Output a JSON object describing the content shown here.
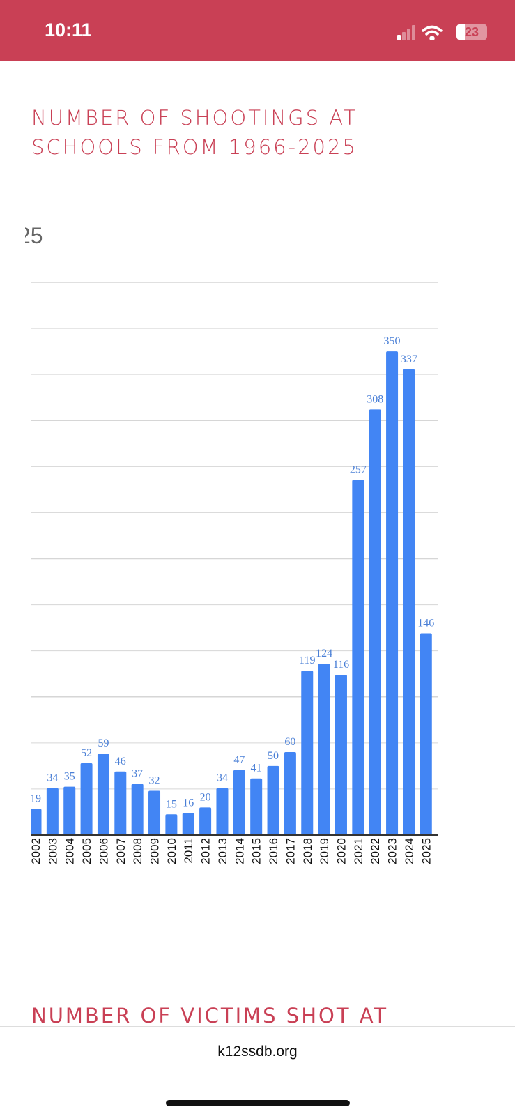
{
  "status_bar": {
    "time": "10:11",
    "battery": "23",
    "icons": [
      "signal-icon",
      "wifi-icon",
      "battery-icon"
    ]
  },
  "section_title": "NUMBER OF SHOOTINGS AT SCHOOLS FROM 1966-2025",
  "next_section_title": "NUMBER OF VICTIMS SHOT AT",
  "chart_cut_label": "25",
  "footer": {
    "url": "k12ssdb.org"
  },
  "chart_data": {
    "type": "bar",
    "title": "",
    "categories": [
      "2002",
      "2003",
      "2004",
      "2005",
      "2006",
      "2007",
      "2008",
      "2009",
      "2010",
      "2011",
      "2012",
      "2013",
      "2014",
      "2015",
      "2016",
      "2017",
      "2018",
      "2019",
      "2020",
      "2021",
      "2022",
      "2023",
      "2024",
      "2025"
    ],
    "values": [
      19,
      34,
      35,
      52,
      59,
      46,
      37,
      32,
      15,
      16,
      20,
      34,
      47,
      41,
      50,
      60,
      119,
      124,
      116,
      257,
      308,
      350,
      337,
      146
    ],
    "ylim": [
      0,
      400
    ],
    "grid": true,
    "bar_color": "#4285f4",
    "label_color": "#4a7fd6",
    "data_labels": true
  }
}
